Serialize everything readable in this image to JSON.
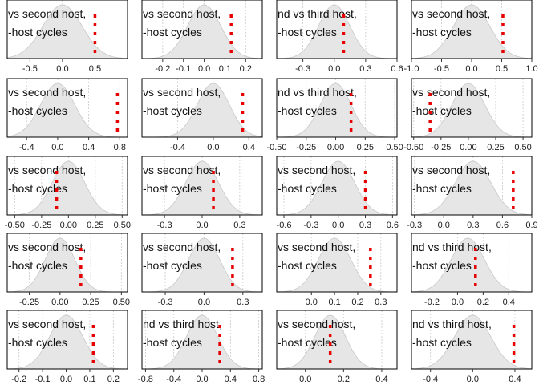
{
  "figure": {
    "panel_text_line1_variants": [
      "vs second host,",
      "nd vs third host,"
    ],
    "panel_text_line2": "-host cycles",
    "density_fill": "#e6e6e6",
    "density_stroke": "#c8c8c8",
    "marker_color": "#e60000",
    "grid_color": "#c8c8c8"
  },
  "chart_data": [
    {
      "type": "area",
      "text_line1": "vs second host,",
      "text_line2": "-host cycles",
      "xlim": [
        -0.85,
        1.0
      ],
      "ticks": [
        -0.5,
        0.0,
        0.5
      ],
      "tick_labels": [
        "-0.5",
        "0.0",
        "0.5"
      ],
      "density_mean": 0.0,
      "density_sd": 0.3,
      "observed": 0.5
    },
    {
      "type": "area",
      "text_line1": "vs second host,",
      "text_line2": "-host cycles",
      "xlim": [
        -0.3,
        0.28
      ],
      "ticks": [
        -0.2,
        -0.1,
        0.0,
        0.1,
        0.2
      ],
      "tick_labels": [
        "-0.2",
        "-0.1",
        "0.0",
        "0.1",
        "0.2"
      ],
      "density_mean": 0.0,
      "density_sd": 0.08,
      "observed": 0.13
    },
    {
      "type": "area",
      "text_line1": "nd vs third host,",
      "text_line2": "-host cycles",
      "xlim": [
        -0.55,
        0.6
      ],
      "ticks": [
        -0.3,
        0.0,
        0.3,
        0.6
      ],
      "tick_labels": [
        "-0.3",
        "0.0",
        "0.3",
        "0.6"
      ],
      "density_mean": 0.0,
      "density_sd": 0.15,
      "observed": 0.09
    },
    {
      "type": "area",
      "text_line1": "vs second host,",
      "text_line2": "-host cycles",
      "xlim": [
        -1.0,
        1.0
      ],
      "ticks": [
        -1.0,
        -0.5,
        0.0,
        0.5,
        1.0
      ],
      "tick_labels": [
        "-1.0",
        "-0.5",
        "0.0",
        "0.5",
        "1.0"
      ],
      "density_mean": 0.0,
      "density_sd": 0.3,
      "observed": 0.52
    },
    {
      "type": "area",
      "text_line1": "vs second host,",
      "text_line2": "-host cycles",
      "xlim": [
        -0.65,
        0.9
      ],
      "ticks": [
        -0.4,
        0.0,
        0.4,
        0.8
      ],
      "tick_labels": [
        "-0.4",
        "0.0",
        "0.4",
        "0.8"
      ],
      "density_mean": 0.0,
      "density_sd": 0.22,
      "observed": 0.77
    },
    {
      "type": "area",
      "text_line1": "vs second host,",
      "text_line2": "-host cycles",
      "xlim": [
        -0.8,
        0.55
      ],
      "ticks": [
        -0.4,
        0.0,
        0.4
      ],
      "tick_labels": [
        "-0.4",
        "0.0",
        "0.4"
      ],
      "density_mean": 0.0,
      "density_sd": 0.18,
      "observed": 0.33
    },
    {
      "type": "area",
      "text_line1": "nd vs third host,",
      "text_line2": "-host cycles",
      "xlim": [
        -0.5,
        0.52
      ],
      "ticks": [
        -0.5,
        -0.25,
        0.0,
        0.25,
        0.5
      ],
      "tick_labels": [
        "-0.50",
        "-0.25",
        "0.00",
        "0.25",
        "0.50"
      ],
      "density_mean": 0.0,
      "density_sd": 0.13,
      "observed": 0.13
    },
    {
      "type": "area",
      "text_line1": "vs second host,",
      "text_line2": "-host cycles",
      "xlim": [
        -0.52,
        0.58
      ],
      "ticks": [
        -0.5,
        -0.25,
        0.0,
        0.25,
        0.5
      ],
      "tick_labels": [
        "-0.50",
        "-0.25",
        "0.00",
        "0.25",
        "0.50"
      ],
      "density_mean": 0.0,
      "density_sd": 0.15,
      "observed": -0.35
    },
    {
      "type": "area",
      "text_line1": "vs second host,",
      "text_line2": "-host cycles",
      "xlim": [
        -0.57,
        0.55
      ],
      "ticks": [
        -0.5,
        -0.25,
        0.0,
        0.25,
        0.5
      ],
      "tick_labels": [
        "-0.50",
        "-0.25",
        "0.00",
        "0.25",
        "0.50"
      ],
      "density_mean": 0.0,
      "density_sd": 0.15,
      "observed": -0.11
    },
    {
      "type": "area",
      "text_line1": "vs second host,",
      "text_line2": "-host cycles",
      "xlim": [
        -0.48,
        0.48
      ],
      "ticks": [
        -0.3,
        0.0,
        0.3
      ],
      "tick_labels": [
        "-0.3",
        "0.0",
        "0.3"
      ],
      "density_mean": 0.0,
      "density_sd": 0.13,
      "observed": 0.09
    },
    {
      "type": "area",
      "text_line1": "vs second host,",
      "text_line2": "-host cycles",
      "xlim": [
        -0.68,
        0.65
      ],
      "ticks": [
        -0.6,
        -0.3,
        0.0,
        0.3,
        0.6
      ],
      "tick_labels": [
        "-0.6",
        "-0.3",
        "0.0",
        "0.3",
        "0.6"
      ],
      "density_mean": 0.0,
      "density_sd": 0.18,
      "observed": 0.3
    },
    {
      "type": "area",
      "text_line1": "vs second host,",
      "text_line2": "-host cycles",
      "xlim": [
        -0.33,
        0.9
      ],
      "ticks": [
        -0.3,
        0.0,
        0.3,
        0.6,
        0.9
      ],
      "tick_labels": [
        "-0.3",
        "0.0",
        "0.3",
        "0.6",
        "0.9"
      ],
      "density_mean": 0.3,
      "density_sd": 0.18,
      "observed": 0.71
    },
    {
      "type": "area",
      "text_line1": "vs second host,",
      "text_line2": "-host cycles",
      "xlim": [
        -0.43,
        0.55
      ],
      "ticks": [
        -0.25,
        0.0,
        0.25,
        0.5
      ],
      "tick_labels": [
        "-0.25",
        "0.00",
        "0.25",
        "0.50"
      ],
      "density_mean": 0.0,
      "density_sd": 0.12,
      "observed": 0.17
    },
    {
      "type": "area",
      "text_line1": "vs second host,",
      "text_line2": "-host cycles",
      "xlim": [
        -0.48,
        0.45
      ],
      "ticks": [
        -0.3,
        0.0,
        0.3
      ],
      "tick_labels": [
        "-0.3",
        "0.0",
        "0.3"
      ],
      "density_mean": 0.0,
      "density_sd": 0.12,
      "observed": 0.22
    },
    {
      "type": "area",
      "text_line1": "vs second host,",
      "text_line2": "-host cycles",
      "xlim": [
        -0.15,
        0.37
      ],
      "ticks": [
        0.0,
        0.1,
        0.2,
        0.3
      ],
      "tick_labels": [
        "0.0",
        "0.1",
        "0.2",
        "0.3"
      ],
      "density_mean": 0.1,
      "density_sd": 0.07,
      "observed": 0.255
    },
    {
      "type": "area",
      "text_line1": "nd vs third host,",
      "text_line2": "-host cycles",
      "xlim": [
        -0.36,
        0.58
      ],
      "ticks": [
        -0.2,
        0.0,
        0.2,
        0.4
      ],
      "tick_labels": [
        "-0.2",
        "0.0",
        "0.2",
        "0.4"
      ],
      "density_mean": 0.08,
      "density_sd": 0.13,
      "observed": 0.14
    },
    {
      "type": "area",
      "text_line1": "vs second host,",
      "text_line2": "-host cycles",
      "xlim": [
        -0.25,
        0.26
      ],
      "ticks": [
        -0.2,
        -0.1,
        0.0,
        0.1,
        0.2
      ],
      "tick_labels": [
        "-0.2",
        "-0.1",
        "0.0",
        "0.1",
        "0.2"
      ],
      "density_mean": 0.0,
      "density_sd": 0.07,
      "observed": 0.115
    },
    {
      "type": "area",
      "text_line1": "nd vs third host,",
      "text_line2": "-host cycles",
      "xlim": [
        -0.85,
        0.85
      ],
      "ticks": [
        -0.8,
        -0.4,
        0.0,
        0.4,
        0.8
      ],
      "tick_labels": [
        "-0.8",
        "-0.4",
        "0.0",
        "0.4",
        "0.8"
      ],
      "density_mean": 0.0,
      "density_sd": 0.22,
      "observed": 0.25
    },
    {
      "type": "area",
      "text_line1": "vs second host,",
      "text_line2": "-host cycles",
      "xlim": [
        -0.15,
        0.48
      ],
      "ticks": [
        0.0,
        0.2,
        0.4
      ],
      "tick_labels": [
        "0.0",
        "0.2",
        "0.4"
      ],
      "density_mean": 0.13,
      "density_sd": 0.08,
      "observed": 0.13
    },
    {
      "type": "area",
      "text_line1": "nd vs third host,",
      "text_line2": "-host cycles",
      "xlim": [
        -0.58,
        0.56
      ],
      "ticks": [
        -0.4,
        0.0,
        0.4
      ],
      "tick_labels": [
        "-0.4",
        "0.0",
        "0.4"
      ],
      "density_mean": 0.0,
      "density_sd": 0.17,
      "observed": 0.39
    }
  ]
}
